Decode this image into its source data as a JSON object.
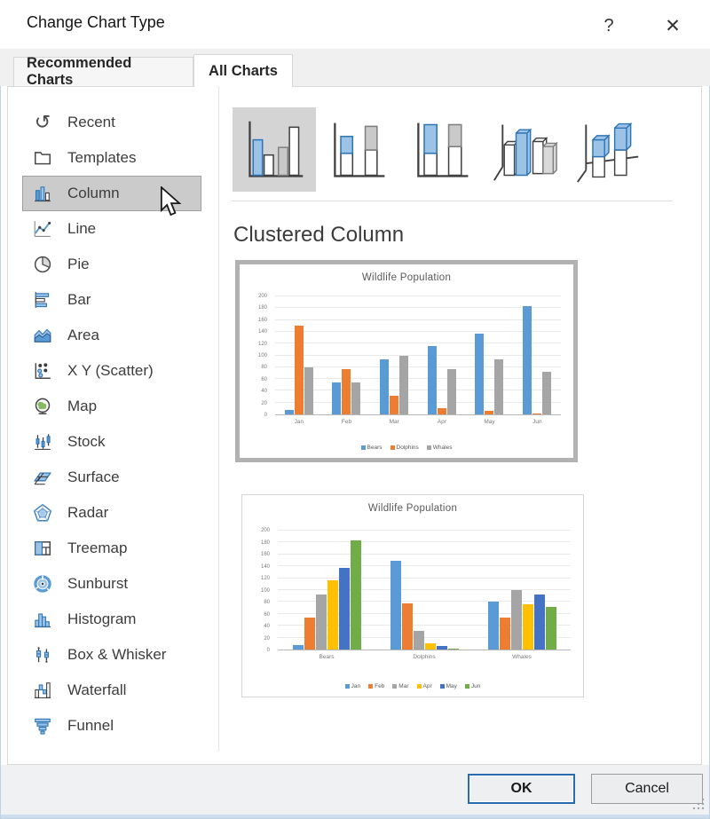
{
  "dialog": {
    "title": "Change Chart Type",
    "help_glyph": "?",
    "close_glyph": "✕"
  },
  "tabs": [
    {
      "label": "Recommended Charts",
      "active": false
    },
    {
      "label": "All Charts",
      "active": true
    }
  ],
  "sidebar": {
    "items": [
      {
        "label": "Recent",
        "icon": "recent-icon",
        "selected": false
      },
      {
        "label": "Templates",
        "icon": "templates-icon",
        "selected": false
      },
      {
        "label": "Column",
        "icon": "column-icon",
        "selected": true
      },
      {
        "label": "Line",
        "icon": "line-icon",
        "selected": false
      },
      {
        "label": "Pie",
        "icon": "pie-icon",
        "selected": false
      },
      {
        "label": "Bar",
        "icon": "bar-icon",
        "selected": false
      },
      {
        "label": "Area",
        "icon": "area-icon",
        "selected": false
      },
      {
        "label": "X Y (Scatter)",
        "icon": "scatter-icon",
        "selected": false
      },
      {
        "label": "Map",
        "icon": "map-icon",
        "selected": false
      },
      {
        "label": "Stock",
        "icon": "stock-icon",
        "selected": false
      },
      {
        "label": "Surface",
        "icon": "surface-icon",
        "selected": false
      },
      {
        "label": "Radar",
        "icon": "radar-icon",
        "selected": false
      },
      {
        "label": "Treemap",
        "icon": "treemap-icon",
        "selected": false
      },
      {
        "label": "Sunburst",
        "icon": "sunburst-icon",
        "selected": false
      },
      {
        "label": "Histogram",
        "icon": "histogram-icon",
        "selected": false
      },
      {
        "label": "Box & Whisker",
        "icon": "box-whisker-icon",
        "selected": false
      },
      {
        "label": "Waterfall",
        "icon": "waterfall-icon",
        "selected": false
      },
      {
        "label": "Funnel",
        "icon": "funnel-icon",
        "selected": false
      }
    ]
  },
  "subtypes": {
    "heading": "Clustered Column",
    "items": [
      {
        "icon": "clustered-column-icon",
        "selected": true
      },
      {
        "icon": "stacked-column-icon",
        "selected": false
      },
      {
        "icon": "100-stacked-column-icon",
        "selected": false
      },
      {
        "icon": "3d-clustered-column-icon",
        "selected": false
      },
      {
        "icon": "3d-stacked-column-icon",
        "selected": false
      }
    ]
  },
  "footer": {
    "ok_label": "OK",
    "cancel_label": "Cancel"
  },
  "chart_data": [
    {
      "type": "bar",
      "title": "Wildlife Population",
      "categories": [
        "Jan",
        "Feb",
        "Mar",
        "Apr",
        "May",
        "Jun"
      ],
      "series": [
        {
          "name": "Bears",
          "color": "#5B9BD5",
          "values": [
            8,
            54,
            93,
            116,
            137,
            184
          ]
        },
        {
          "name": "Dolphins",
          "color": "#ED7D31",
          "values": [
            150,
            77,
            32,
            11,
            6,
            1
          ]
        },
        {
          "name": "Whales",
          "color": "#A5A5A5",
          "values": [
            80,
            54,
            100,
            76,
            93,
            72
          ]
        }
      ],
      "xlabel": "",
      "ylabel": "",
      "ylim": [
        0,
        200
      ],
      "ytick_step": 20,
      "grid": true,
      "legend_position": "bottom"
    },
    {
      "type": "bar",
      "title": "Wildlife Population",
      "categories": [
        "Bears",
        "Dolphins",
        "Whales"
      ],
      "series": [
        {
          "name": "Jan",
          "color": "#5B9BD5",
          "values": [
            8,
            150,
            80
          ]
        },
        {
          "name": "Feb",
          "color": "#ED7D31",
          "values": [
            54,
            77,
            54
          ]
        },
        {
          "name": "Mar",
          "color": "#A5A5A5",
          "values": [
            93,
            32,
            100
          ]
        },
        {
          "name": "Apr",
          "color": "#FFC000",
          "values": [
            116,
            11,
            76
          ]
        },
        {
          "name": "May",
          "color": "#4472C4",
          "values": [
            137,
            6,
            93
          ]
        },
        {
          "name": "Jun",
          "color": "#70AD47",
          "values": [
            184,
            1,
            72
          ]
        }
      ],
      "xlabel": "",
      "ylabel": "",
      "ylim": [
        0,
        200
      ],
      "ytick_step": 20,
      "grid": true,
      "legend_position": "bottom"
    }
  ]
}
